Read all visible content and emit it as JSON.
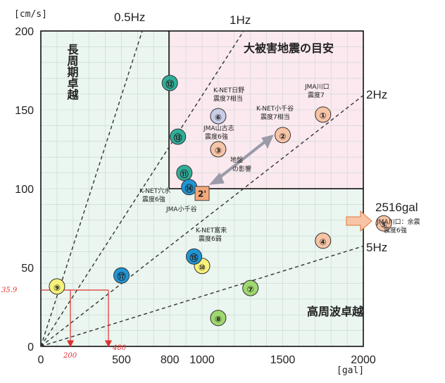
{
  "chart_data": {
    "type": "scatter",
    "xlabel": "[gal]",
    "ylabel": "[cm/s]",
    "xlim": [
      0,
      2000
    ],
    "ylim": [
      0,
      200
    ],
    "x_ticks": [
      0,
      500,
      800,
      1000,
      1500,
      2000
    ],
    "y_ticks": [
      0,
      50,
      100,
      150,
      200
    ],
    "x_tick_labels": [
      "0",
      "500",
      "800",
      "1000",
      "1500",
      "2000"
    ],
    "y_tick_labels": [
      "0",
      "50",
      "100",
      "150",
      "200"
    ],
    "grid": true,
    "region_labels": {
      "damage": "大被害地震の目安",
      "long_period": "長周期卓越",
      "high_freq": "高周波卓越"
    },
    "frequency_lines": [
      {
        "label": "0.5Hz",
        "slope_cm_s_per_gal": 0.318
      },
      {
        "label": "1Hz",
        "slope_cm_s_per_gal": 0.159
      },
      {
        "label": "2Hz",
        "slope_cm_s_per_gal": 0.0796
      },
      {
        "label": "5Hz",
        "slope_cm_s_per_gal": 0.0318
      }
    ],
    "points": [
      {
        "id": "①",
        "pga_gal": 1750,
        "pgv_cm_s": 147,
        "color": "#f7c4a6"
      },
      {
        "id": "②",
        "pga_gal": 1500,
        "pgv_cm_s": 134,
        "color": "#f7c4a6"
      },
      {
        "id": "③",
        "pga_gal": 1100,
        "pgv_cm_s": 125,
        "color": "#f7c4a6"
      },
      {
        "id": "④",
        "pga_gal": 1750,
        "pgv_cm_s": 67,
        "color": "#f7c4a6"
      },
      {
        "id": "⑤",
        "pga_gal": 2516,
        "pgv_cm_s": 78,
        "color": "#f7c4a6",
        "off_scale_label": "2516gal"
      },
      {
        "id": "⑥",
        "pga_gal": 1100,
        "pgv_cm_s": 146,
        "color": "#c9cde6"
      },
      {
        "id": "⑦",
        "pga_gal": 1300,
        "pgv_cm_s": 37,
        "color": "#9ed86e"
      },
      {
        "id": "⑧",
        "pga_gal": 1100,
        "pgv_cm_s": 18,
        "color": "#9ed86e"
      },
      {
        "id": "⑨",
        "pga_gal": 100,
        "pgv_cm_s": 38,
        "color": "#f6f27a"
      },
      {
        "id": "⑩",
        "pga_gal": 1000,
        "pgv_cm_s": 51,
        "color": "#f6f27a"
      },
      {
        "id": "⑪",
        "pga_gal": 890,
        "pgv_cm_s": 110,
        "color": "#2fae99"
      },
      {
        "id": "⑫",
        "pga_gal": 800,
        "pgv_cm_s": 167,
        "color": "#2fae99"
      },
      {
        "id": "⑬",
        "pga_gal": 850,
        "pgv_cm_s": 133,
        "color": "#2fae99"
      },
      {
        "id": "⑭",
        "pga_gal": 920,
        "pgv_cm_s": 101,
        "color": "#2196d6"
      },
      {
        "id": "⑮",
        "pga_gal": 950,
        "pgv_cm_s": 57,
        "color": "#2196d6"
      },
      {
        "id": "⑰",
        "pga_gal": 500,
        "pgv_cm_s": 45,
        "color": "#2196d6"
      }
    ],
    "square_point": {
      "id": "2'",
      "pga_gal": 1000,
      "pgv_cm_s": 97,
      "color": "#f5a87a"
    },
    "annotations": {
      "knet_hino": [
        "K-NET日野",
        "震度7相当"
      ],
      "knet_kochiya": [
        "K-NET小千谷",
        "震度7相当"
      ],
      "jma_kawaguchi": [
        "JMA川口",
        "震度7"
      ],
      "jma_yamakoshi": [
        "JMA山古志",
        "震度6強"
      ],
      "ground": [
        "地盤",
        "の影響"
      ],
      "knet_anamizu": [
        "K-NET穴水",
        "震度6強"
      ],
      "jma_ojiya": "JMA小千谷",
      "knet_tomiku": [
        "K-NET富来",
        "震度6弱"
      ],
      "jma_kawaguchi_r": [
        "JMA川口：余震",
        "震度6強"
      ]
    },
    "handwritten": {
      "y_value": "35.9",
      "x_value_1": "200",
      "x_value_2": "480"
    }
  }
}
